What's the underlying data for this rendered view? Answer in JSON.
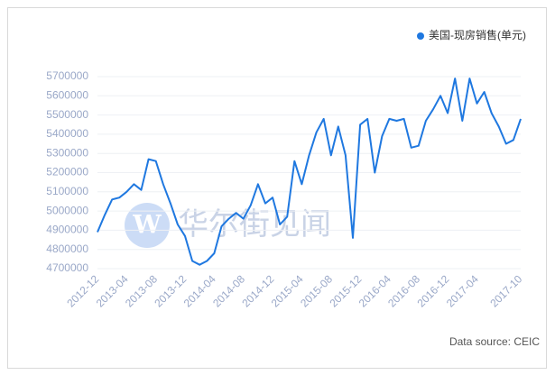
{
  "chart_data": {
    "type": "line",
    "legend_position": "top-right",
    "source": "Data source: CEIC",
    "watermark": "华尔街见闻",
    "categories": [
      "2012-12",
      null,
      null,
      null,
      "2013-04",
      null,
      null,
      null,
      "2013-08",
      null,
      null,
      null,
      "2013-12",
      null,
      null,
      null,
      "2014-04",
      null,
      null,
      null,
      "2014-08",
      null,
      null,
      null,
      "2014-12",
      null,
      null,
      null,
      "2015-04",
      null,
      null,
      null,
      "2015-08",
      null,
      null,
      null,
      "2015-12",
      null,
      null,
      null,
      "2016-04",
      null,
      null,
      null,
      "2016-08",
      null,
      null,
      null,
      "2016-12",
      null,
      null,
      null,
      "2017-04",
      null,
      null,
      null,
      null,
      null,
      "2017-10"
    ],
    "series": [
      {
        "name": "美国-现房销售(单元)",
        "color": "#1f78e0",
        "values": [
          4890000,
          4980000,
          5060000,
          5070000,
          5100000,
          5140000,
          5110000,
          5270000,
          5260000,
          5140000,
          5040000,
          4930000,
          4870000,
          4740000,
          4720000,
          4740000,
          4780000,
          4920000,
          4960000,
          4990000,
          4960000,
          5030000,
          5140000,
          5040000,
          5070000,
          4930000,
          4970000,
          5260000,
          5140000,
          5290000,
          5410000,
          5480000,
          5290000,
          5440000,
          5290000,
          4860000,
          5450000,
          5480000,
          5200000,
          5390000,
          5480000,
          5470000,
          5480000,
          5330000,
          5340000,
          5470000,
          5530000,
          5600000,
          5510000,
          5690000,
          5470000,
          5690000,
          5560000,
          5620000,
          5510000,
          5440000,
          5350000,
          5370000,
          5480000
        ]
      }
    ],
    "ylim": [
      4700000,
      5700000
    ],
    "yticks": [
      4700000,
      4800000,
      4900000,
      5000000,
      5100000,
      5200000,
      5300000,
      5400000,
      5500000,
      5600000,
      5700000
    ],
    "grid": true
  }
}
